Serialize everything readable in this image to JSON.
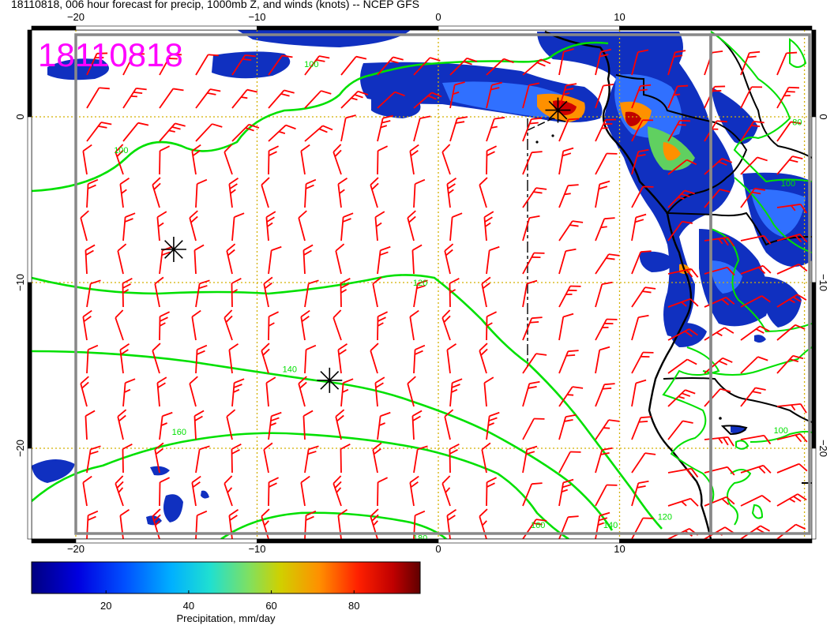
{
  "title": "18110818, 006 hour forecast for precip, 1000mb Z, and winds (knots) -- NCEP GFS",
  "date_stamp": "18110818",
  "lon_ticks": [
    {
      "lon": -20,
      "label": "−20"
    },
    {
      "lon": -10,
      "label": "−10"
    },
    {
      "lon": 0,
      "label": "0"
    },
    {
      "lon": 10,
      "label": "10"
    }
  ],
  "lat_ticks": [
    {
      "lat": 0,
      "label": "0"
    },
    {
      "lat": -10,
      "label": "−10"
    },
    {
      "lat": -20,
      "label": "−20"
    }
  ],
  "contour_labels": [
    {
      "text": "100",
      "lon": -7,
      "lat": 3
    },
    {
      "text": "100",
      "lon": -17.5,
      "lat": -2.2
    },
    {
      "text": "80",
      "lon": 19.8,
      "lat": -0.5
    },
    {
      "text": "100",
      "lon": 19.3,
      "lat": -4.2
    },
    {
      "text": "120",
      "lon": -1,
      "lat": -10.2
    },
    {
      "text": "140",
      "lon": -8.2,
      "lat": -15.4
    },
    {
      "text": "160",
      "lon": -14.3,
      "lat": -19.2
    },
    {
      "text": "100",
      "lon": 18.9,
      "lat": -19.1
    },
    {
      "text": "160",
      "lon": 5.5,
      "lat": -24.8
    },
    {
      "text": "140",
      "lon": 9.5,
      "lat": -24.8
    },
    {
      "text": "120",
      "lon": 12.5,
      "lat": -24.3
    },
    {
      "text": "180",
      "lon": -1,
      "lat": -25.6
    }
  ],
  "storm_markers": [
    {
      "lon": -14.6,
      "lat": -8
    },
    {
      "lon": -6,
      "lat": -15.9
    },
    {
      "lon": 6.6,
      "lat": 0.4
    }
  ],
  "colors": {
    "wind_barb": "#ff0000",
    "height_contour": "#00e000",
    "coastline": "#000000",
    "grid": "#d4b000",
    "stamp": "#ff00ff"
  },
  "colorbar": {
    "ticks": [
      {
        "value": 20,
        "label": "20"
      },
      {
        "value": 40,
        "label": "40"
      },
      {
        "value": 60,
        "label": "60"
      },
      {
        "value": 80,
        "label": "80"
      }
    ],
    "range": [
      2,
      96
    ],
    "label": "Precipitation, mm/day"
  }
}
